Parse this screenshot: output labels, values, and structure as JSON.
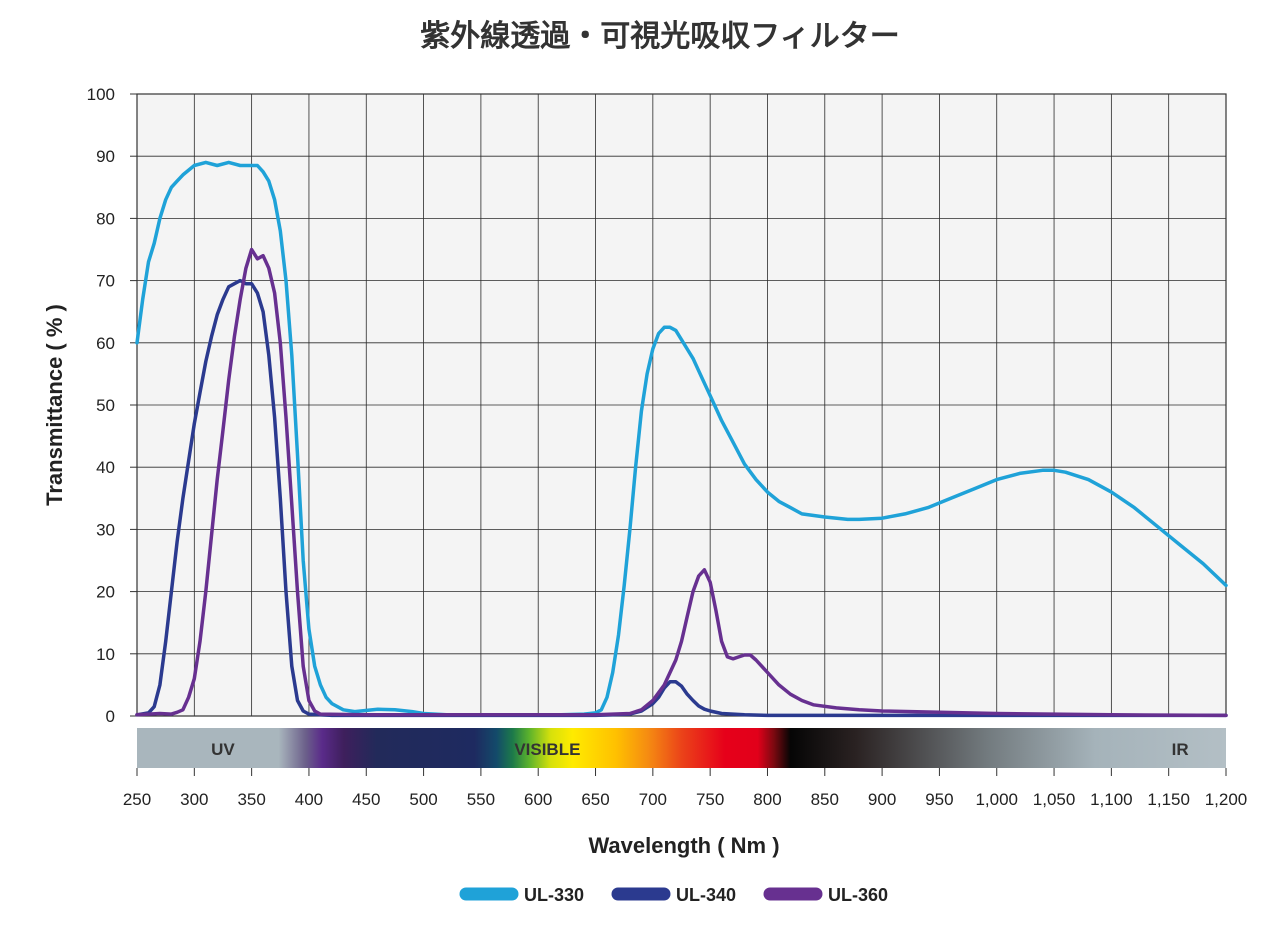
{
  "chart_data": {
    "type": "line",
    "title": "紫外線透過・可視光吸収フィルター",
    "xlabel": "Wavelength ( Nm )",
    "ylabel": "Transmittance ( % )",
    "xlim": [
      250,
      1200
    ],
    "ylim": [
      0,
      100
    ],
    "x_ticks": [
      {
        "value": 250,
        "label": "250"
      },
      {
        "value": 300,
        "label": "300"
      },
      {
        "value": 350,
        "label": "350"
      },
      {
        "value": 400,
        "label": "400"
      },
      {
        "value": 450,
        "label": "450"
      },
      {
        "value": 500,
        "label": "500"
      },
      {
        "value": 550,
        "label": "550"
      },
      {
        "value": 600,
        "label": "600"
      },
      {
        "value": 650,
        "label": "650"
      },
      {
        "value": 700,
        "label": "700"
      },
      {
        "value": 750,
        "label": "750"
      },
      {
        "value": 800,
        "label": "800"
      },
      {
        "value": 850,
        "label": "850"
      },
      {
        "value": 900,
        "label": "900"
      },
      {
        "value": 950,
        "label": "950"
      },
      {
        "value": 1000,
        "label": "1,000"
      },
      {
        "value": 1050,
        "label": "1,050"
      },
      {
        "value": 1100,
        "label": "1,100"
      },
      {
        "value": 1150,
        "label": "1,150"
      },
      {
        "value": 1200,
        "label": "1,200"
      }
    ],
    "y_ticks": [
      0,
      10,
      20,
      30,
      40,
      50,
      60,
      70,
      80,
      90,
      100
    ],
    "grid": true,
    "legend_position": "bottom-center",
    "spectrum_band": {
      "labels": [
        {
          "text": "UV",
          "x": 325
        },
        {
          "text": "VISIBLE",
          "x": 608
        },
        {
          "text": "IR",
          "x": 1160
        }
      ]
    },
    "series": [
      {
        "name": "UL-330",
        "color": "#1fa2d8",
        "points": [
          [
            250,
            60
          ],
          [
            255,
            67
          ],
          [
            260,
            73
          ],
          [
            265,
            76
          ],
          [
            270,
            80
          ],
          [
            275,
            83
          ],
          [
            280,
            85
          ],
          [
            285,
            86
          ],
          [
            290,
            87
          ],
          [
            300,
            88.5
          ],
          [
            310,
            89
          ],
          [
            320,
            88.5
          ],
          [
            330,
            89
          ],
          [
            340,
            88.5
          ],
          [
            350,
            88.5
          ],
          [
            355,
            88.5
          ],
          [
            360,
            87.5
          ],
          [
            365,
            86
          ],
          [
            370,
            83
          ],
          [
            375,
            78
          ],
          [
            380,
            70
          ],
          [
            385,
            58
          ],
          [
            390,
            42
          ],
          [
            395,
            25
          ],
          [
            400,
            14
          ],
          [
            405,
            8
          ],
          [
            410,
            5
          ],
          [
            415,
            3
          ],
          [
            420,
            2
          ],
          [
            430,
            1
          ],
          [
            440,
            0.7
          ],
          [
            460,
            1.1
          ],
          [
            475,
            1
          ],
          [
            490,
            0.7
          ],
          [
            500,
            0.4
          ],
          [
            520,
            0.2
          ],
          [
            540,
            0.2
          ],
          [
            560,
            0.2
          ],
          [
            580,
            0.2
          ],
          [
            600,
            0.2
          ],
          [
            620,
            0.2
          ],
          [
            640,
            0.3
          ],
          [
            650,
            0.5
          ],
          [
            655,
            1
          ],
          [
            660,
            3
          ],
          [
            665,
            7
          ],
          [
            670,
            13
          ],
          [
            675,
            21
          ],
          [
            680,
            30
          ],
          [
            685,
            40
          ],
          [
            690,
            49
          ],
          [
            695,
            55
          ],
          [
            700,
            59
          ],
          [
            705,
            61.5
          ],
          [
            710,
            62.5
          ],
          [
            715,
            62.5
          ],
          [
            720,
            62
          ],
          [
            725,
            60.5
          ],
          [
            730,
            59
          ],
          [
            735,
            57.5
          ],
          [
            740,
            55.5
          ],
          [
            745,
            53.5
          ],
          [
            750,
            51.5
          ],
          [
            755,
            49.5
          ],
          [
            760,
            47.5
          ],
          [
            770,
            44
          ],
          [
            780,
            40.5
          ],
          [
            790,
            38
          ],
          [
            800,
            36
          ],
          [
            810,
            34.5
          ],
          [
            820,
            33.5
          ],
          [
            830,
            32.5
          ],
          [
            850,
            32
          ],
          [
            870,
            31.6
          ],
          [
            880,
            31.6
          ],
          [
            900,
            31.8
          ],
          [
            920,
            32.5
          ],
          [
            940,
            33.5
          ],
          [
            960,
            35
          ],
          [
            980,
            36.5
          ],
          [
            1000,
            38
          ],
          [
            1020,
            39
          ],
          [
            1040,
            39.5
          ],
          [
            1050,
            39.5
          ],
          [
            1060,
            39.2
          ],
          [
            1080,
            38
          ],
          [
            1100,
            36
          ],
          [
            1120,
            33.5
          ],
          [
            1140,
            30.5
          ],
          [
            1160,
            27.5
          ],
          [
            1180,
            24.5
          ],
          [
            1200,
            21
          ]
        ]
      },
      {
        "name": "UL-340",
        "color": "#2b3a8f",
        "points": [
          [
            250,
            0.2
          ],
          [
            260,
            0.5
          ],
          [
            265,
            1.5
          ],
          [
            270,
            5
          ],
          [
            275,
            12
          ],
          [
            280,
            20
          ],
          [
            285,
            28
          ],
          [
            290,
            35
          ],
          [
            295,
            41
          ],
          [
            300,
            47
          ],
          [
            305,
            52
          ],
          [
            310,
            57
          ],
          [
            315,
            61
          ],
          [
            320,
            64.5
          ],
          [
            325,
            67
          ],
          [
            330,
            69
          ],
          [
            335,
            69.5
          ],
          [
            340,
            70
          ],
          [
            345,
            69.5
          ],
          [
            350,
            69.5
          ],
          [
            355,
            68
          ],
          [
            360,
            65
          ],
          [
            365,
            58
          ],
          [
            370,
            48
          ],
          [
            375,
            35
          ],
          [
            380,
            20
          ],
          [
            385,
            8
          ],
          [
            390,
            2.5
          ],
          [
            395,
            0.8
          ],
          [
            400,
            0.3
          ],
          [
            420,
            0.1
          ],
          [
            500,
            0.1
          ],
          [
            600,
            0.1
          ],
          [
            650,
            0.1
          ],
          [
            680,
            0.3
          ],
          [
            690,
            0.8
          ],
          [
            700,
            2
          ],
          [
            705,
            3
          ],
          [
            710,
            4.5
          ],
          [
            715,
            5.5
          ],
          [
            720,
            5.5
          ],
          [
            725,
            4.8
          ],
          [
            730,
            3.5
          ],
          [
            735,
            2.5
          ],
          [
            740,
            1.6
          ],
          [
            745,
            1.1
          ],
          [
            750,
            0.8
          ],
          [
            760,
            0.4
          ],
          [
            780,
            0.2
          ],
          [
            800,
            0.1
          ],
          [
            900,
            0.1
          ],
          [
            1000,
            0.1
          ],
          [
            1100,
            0.1
          ],
          [
            1200,
            0.1
          ]
        ]
      },
      {
        "name": "UL-360",
        "color": "#673090",
        "points": [
          [
            250,
            0.2
          ],
          [
            260,
            0.3
          ],
          [
            270,
            0.4
          ],
          [
            280,
            0.3
          ],
          [
            285,
            0.6
          ],
          [
            290,
            1
          ],
          [
            295,
            3
          ],
          [
            300,
            6
          ],
          [
            305,
            12
          ],
          [
            310,
            20
          ],
          [
            315,
            29
          ],
          [
            320,
            38
          ],
          [
            325,
            46
          ],
          [
            330,
            54
          ],
          [
            335,
            61
          ],
          [
            340,
            67
          ],
          [
            345,
            72
          ],
          [
            350,
            75
          ],
          [
            355,
            73.5
          ],
          [
            360,
            74
          ],
          [
            365,
            72
          ],
          [
            370,
            68
          ],
          [
            375,
            60
          ],
          [
            380,
            48
          ],
          [
            385,
            34
          ],
          [
            390,
            20
          ],
          [
            395,
            8
          ],
          [
            400,
            2.5
          ],
          [
            405,
            0.8
          ],
          [
            410,
            0.3
          ],
          [
            450,
            0.2
          ],
          [
            550,
            0.2
          ],
          [
            650,
            0.2
          ],
          [
            680,
            0.4
          ],
          [
            690,
            1
          ],
          [
            700,
            2.5
          ],
          [
            710,
            5
          ],
          [
            720,
            9
          ],
          [
            725,
            12
          ],
          [
            730,
            16
          ],
          [
            735,
            20
          ],
          [
            740,
            22.5
          ],
          [
            745,
            23.5
          ],
          [
            750,
            21.5
          ],
          [
            755,
            17
          ],
          [
            760,
            12
          ],
          [
            765,
            9.5
          ],
          [
            770,
            9.2
          ],
          [
            775,
            9.5
          ],
          [
            780,
            9.8
          ],
          [
            785,
            9.8
          ],
          [
            790,
            9
          ],
          [
            800,
            7
          ],
          [
            810,
            5
          ],
          [
            820,
            3.5
          ],
          [
            830,
            2.5
          ],
          [
            840,
            1.8
          ],
          [
            860,
            1.3
          ],
          [
            880,
            1
          ],
          [
            900,
            0.8
          ],
          [
            950,
            0.6
          ],
          [
            1000,
            0.4
          ],
          [
            1100,
            0.2
          ],
          [
            1200,
            0.1
          ]
        ]
      }
    ]
  }
}
